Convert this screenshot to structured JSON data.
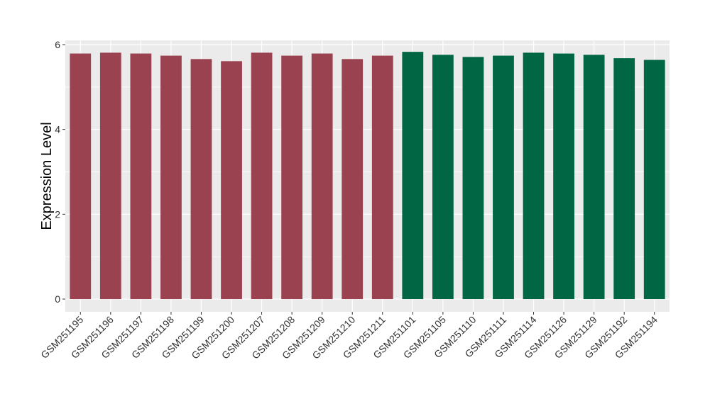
{
  "chart_data": {
    "type": "bar",
    "title": "",
    "xlabel": "",
    "ylabel": "Expression Level",
    "ylim": [
      -0.3,
      6.1
    ],
    "yticks": [
      0,
      2,
      4,
      6
    ],
    "grid": true,
    "legend": "none",
    "categories": [
      "GSM251195",
      "GSM251196",
      "GSM251197",
      "GSM251198",
      "GSM251199",
      "GSM251200",
      "GSM251207",
      "GSM251208",
      "GSM251209",
      "GSM251210",
      "GSM251211",
      "GSM251101",
      "GSM251105",
      "GSM251110",
      "GSM251111",
      "GSM251114",
      "GSM251126",
      "GSM251129",
      "GSM251192",
      "GSM251194"
    ],
    "values": [
      5.79,
      5.81,
      5.79,
      5.74,
      5.66,
      5.61,
      5.81,
      5.74,
      5.79,
      5.66,
      5.74,
      5.83,
      5.76,
      5.71,
      5.74,
      5.81,
      5.79,
      5.76,
      5.68,
      5.64
    ],
    "groups": [
      0,
      0,
      0,
      0,
      0,
      0,
      0,
      0,
      0,
      0,
      0,
      1,
      1,
      1,
      1,
      1,
      1,
      1,
      1,
      1
    ],
    "group_colors": [
      "#9a4250",
      "#006644"
    ],
    "colors": {
      "panel_background": "#ebebeb",
      "grid_line": "#ffffff"
    }
  }
}
